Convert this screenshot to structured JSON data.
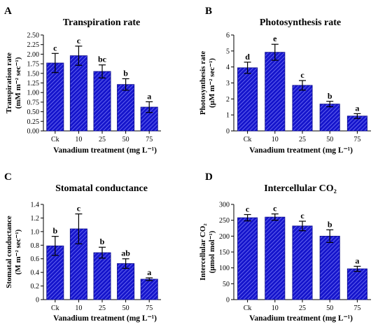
{
  "chart_data": [
    {
      "type": "bar",
      "panel": "A",
      "title": "Transpiration rate",
      "xlabel": "Vanadium treatment (mg L⁻¹)",
      "ylabel_lines": [
        "Transpiration rate",
        "(mM m⁻² sec⁻¹)"
      ],
      "categories": [
        "Ck",
        "10",
        "25",
        "50",
        "75"
      ],
      "values": [
        1.77,
        1.96,
        1.55,
        1.21,
        0.62
      ],
      "errors": [
        0.25,
        0.25,
        0.17,
        0.15,
        0.14
      ],
      "letters": [
        "c",
        "c",
        "bc",
        "b",
        "a"
      ],
      "ylim": [
        0,
        2.5
      ],
      "yticks": [
        "0.00",
        "0.25",
        "0.50",
        "0.75",
        "1.00",
        "1.25",
        "1.50",
        "1.75",
        "2.00",
        "2.25",
        "2.50"
      ]
    },
    {
      "type": "bar",
      "panel": "B",
      "title": "Photosynthesis rate",
      "xlabel": "Vanadium treatment (mg L⁻¹)",
      "ylabel_lines": [
        "Photosynthesis rate",
        "(μM m⁻² sec⁻¹)"
      ],
      "categories": [
        "Ck",
        "10",
        "25",
        "50",
        "75"
      ],
      "values": [
        3.95,
        4.92,
        2.85,
        1.68,
        0.93
      ],
      "errors": [
        0.35,
        0.5,
        0.3,
        0.17,
        0.15
      ],
      "letters": [
        "d",
        "e",
        "c",
        "b",
        "a"
      ],
      "ylim": [
        0,
        6
      ],
      "yticks": [
        "0",
        "1",
        "2",
        "3",
        "4",
        "5",
        "6"
      ]
    },
    {
      "type": "bar",
      "panel": "C",
      "title": "Stomatal conductance",
      "xlabel": "Vanadium treatment (mg L⁻¹)",
      "ylabel_lines": [
        "Stomatal conductance",
        "(M m⁻² sec⁻¹)"
      ],
      "categories": [
        "Ck",
        "10",
        "25",
        "50",
        "75"
      ],
      "values": [
        0.79,
        1.04,
        0.69,
        0.53,
        0.3
      ],
      "errors": [
        0.14,
        0.22,
        0.08,
        0.07,
        0.02
      ],
      "letters": [
        "b",
        "c",
        "b",
        "ab",
        "a"
      ],
      "ylim": [
        0,
        1.4
      ],
      "yticks": [
        "0",
        "0.2",
        "0.4",
        "0.6",
        "0.8",
        "1.0",
        "1.2",
        "1.4"
      ]
    },
    {
      "type": "bar",
      "panel": "D",
      "title": "Intercellular CO₂",
      "xlabel": "Vanadium treatment (mg L⁻¹)",
      "ylabel_lines": [
        "Intercellular CO₂",
        "(μmol mol⁻¹)"
      ],
      "categories": [
        "Ck",
        "10",
        "25",
        "50",
        "75"
      ],
      "values": [
        258,
        260,
        232,
        200,
        97
      ],
      "errors": [
        10,
        10,
        15,
        20,
        8
      ],
      "letters": [
        "c",
        "c",
        "c",
        "b",
        "a"
      ],
      "ylim": [
        0,
        300
      ],
      "yticks": [
        "0",
        "50",
        "100",
        "150",
        "200",
        "250",
        "300"
      ]
    }
  ],
  "colors": {
    "bar_fill": "#1515cc",
    "bar_hatch": "#8a8aff",
    "axis": "#000000"
  }
}
